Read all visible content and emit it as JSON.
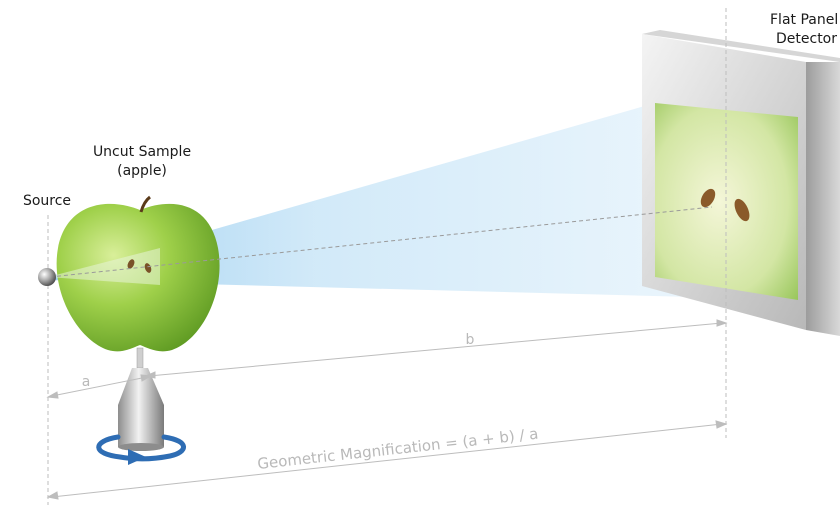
{
  "labels": {
    "source": "Source",
    "sample_line1": "Uncut Sample",
    "sample_line2": "(apple)",
    "detector_line1": "Flat Panel",
    "detector_line2": "Detector"
  },
  "dimensions": {
    "a": "a",
    "b": "b",
    "formula": "Geometric Magnification = (a + b) / a"
  },
  "colors": {
    "beam": "#bfe0f5",
    "apple": "#8cc63f",
    "rotation_arrow": "#2e6db4",
    "dimension_line": "#bdbdbd"
  }
}
